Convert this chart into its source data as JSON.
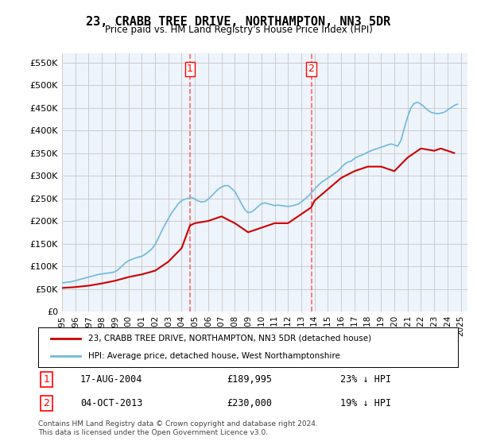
{
  "title": "23, CRABB TREE DRIVE, NORTHAMPTON, NN3 5DR",
  "subtitle": "Price paid vs. HM Land Registry's House Price Index (HPI)",
  "ylabel_ticks": [
    "£0",
    "£50K",
    "£100K",
    "£150K",
    "£200K",
    "£250K",
    "£300K",
    "£350K",
    "£400K",
    "£450K",
    "£500K",
    "£550K"
  ],
  "ytick_values": [
    0,
    50000,
    100000,
    150000,
    200000,
    250000,
    300000,
    350000,
    400000,
    450000,
    500000,
    550000
  ],
  "ylim": [
    0,
    570000
  ],
  "xlim_start": 1995.0,
  "xlim_end": 2025.5,
  "bg_color": "#EEF4FB",
  "grid_color": "#CCCCCC",
  "line_color_hpi": "#6FB8E0",
  "line_color_price": "#CC0000",
  "vline_color": "#FF6666",
  "vline_style": "dashed",
  "purchase1_x": 2004.625,
  "purchase1_y": 189995,
  "purchase2_x": 2013.75,
  "purchase2_y": 230000,
  "purchase1_label": "1",
  "purchase2_label": "2",
  "legend_line1": "23, CRABB TREE DRIVE, NORTHAMPTON, NN3 5DR (detached house)",
  "legend_line2": "HPI: Average price, detached house, West Northamptonshire",
  "annotation1_date": "17-AUG-2004",
  "annotation1_price": "£189,995",
  "annotation1_hpi": "23% ↓ HPI",
  "annotation2_date": "04-OCT-2013",
  "annotation2_price": "£230,000",
  "annotation2_hpi": "19% ↓ HPI",
  "footer": "Contains HM Land Registry data © Crown copyright and database right 2024.\nThis data is licensed under the Open Government Licence v3.0.",
  "hpi_x": [
    1995.0,
    1995.25,
    1995.5,
    1995.75,
    1996.0,
    1996.25,
    1996.5,
    1996.75,
    1997.0,
    1997.25,
    1997.5,
    1997.75,
    1998.0,
    1998.25,
    1998.5,
    1998.75,
    1999.0,
    1999.25,
    1999.5,
    1999.75,
    2000.0,
    2000.25,
    2000.5,
    2000.75,
    2001.0,
    2001.25,
    2001.5,
    2001.75,
    2002.0,
    2002.25,
    2002.5,
    2002.75,
    2003.0,
    2003.25,
    2003.5,
    2003.75,
    2004.0,
    2004.25,
    2004.5,
    2004.75,
    2005.0,
    2005.25,
    2005.5,
    2005.75,
    2006.0,
    2006.25,
    2006.5,
    2006.75,
    2007.0,
    2007.25,
    2007.5,
    2007.75,
    2008.0,
    2008.25,
    2008.5,
    2008.75,
    2009.0,
    2009.25,
    2009.5,
    2009.75,
    2010.0,
    2010.25,
    2010.5,
    2010.75,
    2011.0,
    2011.25,
    2011.5,
    2011.75,
    2012.0,
    2012.25,
    2012.5,
    2012.75,
    2013.0,
    2013.25,
    2013.5,
    2013.75,
    2014.0,
    2014.25,
    2014.5,
    2014.75,
    2015.0,
    2015.25,
    2015.5,
    2015.75,
    2016.0,
    2016.25,
    2016.5,
    2016.75,
    2017.0,
    2017.25,
    2017.5,
    2017.75,
    2018.0,
    2018.25,
    2018.5,
    2018.75,
    2019.0,
    2019.25,
    2019.5,
    2019.75,
    2020.0,
    2020.25,
    2020.5,
    2020.75,
    2021.0,
    2021.25,
    2021.5,
    2021.75,
    2022.0,
    2022.25,
    2022.5,
    2022.75,
    2023.0,
    2023.25,
    2023.5,
    2023.75,
    2024.0,
    2024.25,
    2024.5,
    2024.75
  ],
  "hpi_y": [
    63000,
    64000,
    65000,
    66000,
    68000,
    70000,
    72000,
    74000,
    76000,
    78000,
    80000,
    82000,
    83000,
    84000,
    85000,
    86000,
    88000,
    93000,
    100000,
    107000,
    112000,
    115000,
    118000,
    120000,
    122000,
    126000,
    132000,
    138000,
    148000,
    162000,
    178000,
    192000,
    205000,
    218000,
    228000,
    238000,
    245000,
    248000,
    250000,
    252000,
    248000,
    244000,
    242000,
    243000,
    248000,
    255000,
    263000,
    270000,
    275000,
    278000,
    278000,
    272000,
    265000,
    252000,
    238000,
    225000,
    218000,
    220000,
    225000,
    232000,
    238000,
    240000,
    238000,
    236000,
    234000,
    235000,
    234000,
    233000,
    232000,
    233000,
    235000,
    237000,
    242000,
    248000,
    254000,
    262000,
    270000,
    278000,
    285000,
    290000,
    295000,
    300000,
    305000,
    310000,
    318000,
    325000,
    330000,
    332000,
    338000,
    342000,
    345000,
    348000,
    352000,
    355000,
    358000,
    360000,
    363000,
    365000,
    368000,
    370000,
    368000,
    365000,
    378000,
    405000,
    430000,
    450000,
    460000,
    462000,
    458000,
    452000,
    445000,
    440000,
    438000,
    437000,
    438000,
    440000,
    445000,
    450000,
    455000,
    458000
  ],
  "price_x": [
    1995.0,
    1996.0,
    1997.0,
    1998.0,
    1999.0,
    2000.0,
    2001.0,
    2002.0,
    2003.0,
    2004.0,
    2004.625,
    2005.0,
    2006.0,
    2007.0,
    2008.0,
    2009.0,
    2010.0,
    2011.0,
    2012.0,
    2013.0,
    2013.75,
    2014.0,
    2015.0,
    2016.0,
    2017.0,
    2018.0,
    2019.0,
    2020.0,
    2021.0,
    2022.0,
    2023.0,
    2023.5,
    2024.0,
    2024.5
  ],
  "price_y": [
    52000,
    54000,
    57000,
    62000,
    68000,
    76000,
    82000,
    90000,
    110000,
    140000,
    189995,
    195000,
    200000,
    210000,
    195000,
    175000,
    185000,
    195000,
    195000,
    215000,
    230000,
    245000,
    270000,
    295000,
    310000,
    320000,
    320000,
    310000,
    340000,
    360000,
    355000,
    360000,
    355000,
    350000
  ]
}
